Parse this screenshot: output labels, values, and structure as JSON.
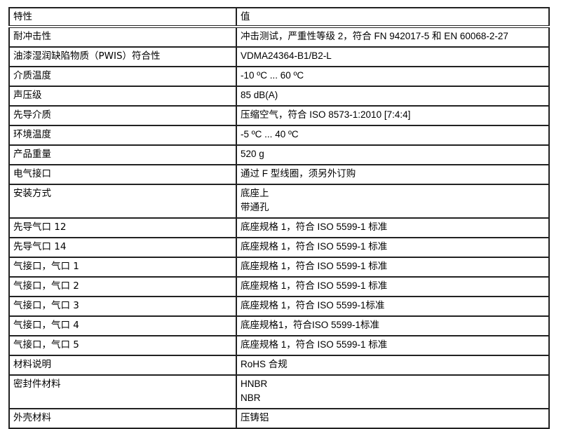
{
  "header": {
    "property": "特性",
    "value": "值"
  },
  "rows": [
    {
      "property": "耐冲击性",
      "value": [
        "冲击测试，严重性等级 2，符合 FN 942017-5 和 EN 60068-2-27"
      ]
    },
    {
      "property": "油漆湿润缺陷物质（PWIS）符合性",
      "value": [
        "VDMA24364-B1/B2-L"
      ]
    },
    {
      "property": "介质温度",
      "value": [
        "-10 ºC ... 60 ºC"
      ]
    },
    {
      "property": "声压级",
      "value": [
        "85 dB(A)"
      ]
    },
    {
      "property": "先导介质",
      "value": [
        "压缩空气，符合 ISO 8573-1:2010 [7:4:4]"
      ]
    },
    {
      "property": "环境温度",
      "value": [
        "-5 ºC ... 40 ºC"
      ]
    },
    {
      "property": "产品重量",
      "value": [
        "520 g"
      ]
    },
    {
      "property": "电气接口",
      "value": [
        "通过 F 型线圈，须另外订购"
      ]
    },
    {
      "property": "安装方式",
      "value": [
        "底座上",
        "带通孔"
      ]
    },
    {
      "property": "先导气口 12",
      "value": [
        "底座规格 1，符合 ISO 5599-1 标准"
      ]
    },
    {
      "property": "先导气口 14",
      "value": [
        "底座规格 1，符合 ISO 5599-1 标准"
      ]
    },
    {
      "property": "气接口，气口 1",
      "value": [
        "底座规格 1，符合 ISO 5599-1 标准"
      ]
    },
    {
      "property": "气接口，气口 2",
      "value": [
        "底座规格 1，符合 ISO 5599-1 标准"
      ]
    },
    {
      "property": "气接口，气口 3",
      "value": [
        "底座规格 1，符合 ISO 5599-1标准"
      ]
    },
    {
      "property": "气接口，气口 4",
      "value": [
        "底座规格1，符合ISO 5599-1标准"
      ]
    },
    {
      "property": "气接口，气口 5",
      "value": [
        "底座规格 1，符合 ISO 5599-1 标准"
      ]
    },
    {
      "property": "材料说明",
      "value": [
        "RoHS 合规"
      ]
    },
    {
      "property": "密封件材料",
      "value": [
        "HNBR",
        "NBR"
      ]
    },
    {
      "property": "外壳材料",
      "value": [
        "压铸铝"
      ]
    }
  ]
}
